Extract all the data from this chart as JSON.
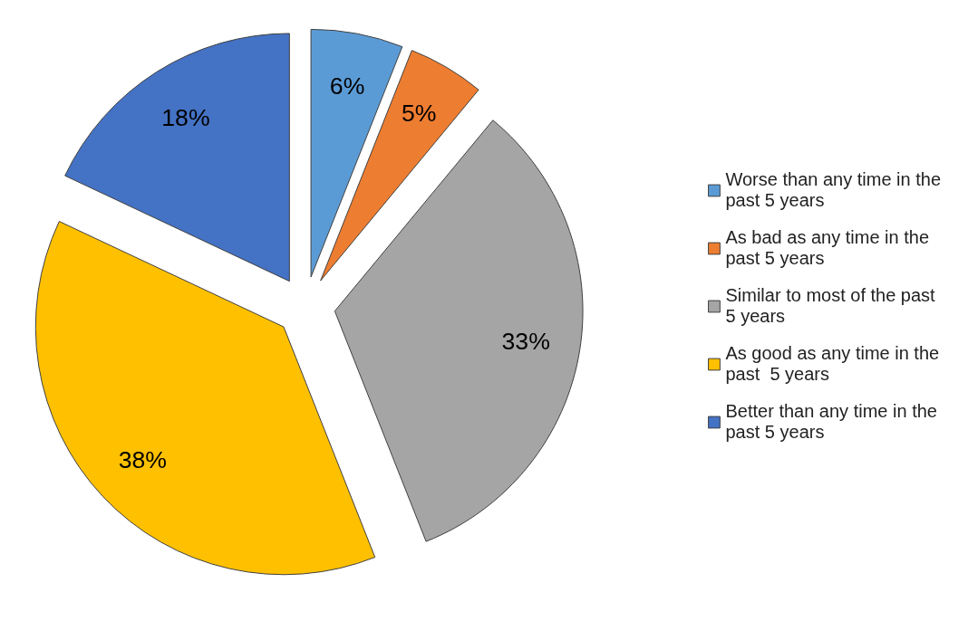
{
  "chart_data": {
    "type": "pie",
    "categories": [
      "Worse than any time in the past 5 years",
      "As bad as any time in the past 5 years",
      "Similar to most of the past 5 years",
      "As good as any time in the past  5 years",
      "Better than any time in the past 5 years"
    ],
    "values": [
      6,
      5,
      33,
      38,
      18
    ],
    "colors": [
      "#5b9bd5",
      "#ed7d31",
      "#a5a5a5",
      "#ffc000",
      "#4472c4"
    ],
    "value_labels": [
      "6%",
      "5%",
      "33%",
      "38%",
      "18%"
    ],
    "legend": "right"
  }
}
